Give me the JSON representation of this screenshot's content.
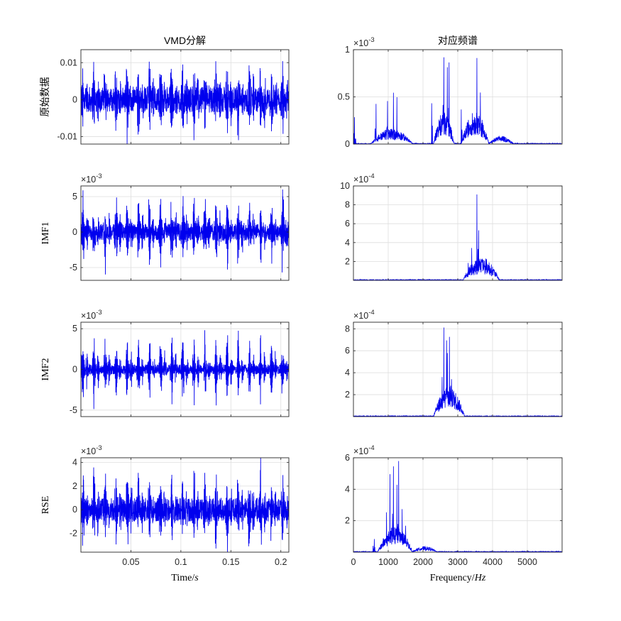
{
  "colors": {
    "signal": "#0000ee",
    "axis": "#262626",
    "grid": "#dedede"
  },
  "chart_data": [
    {
      "id": "raw-time",
      "type": "line",
      "title": "VMD分解",
      "ylabel": "原始数据",
      "xlabel": "",
      "xlim": [
        0,
        0.208
      ],
      "ylim": [
        -0.012,
        0.0135
      ],
      "xticks": [
        0.05,
        0.1,
        0.15,
        0.2
      ],
      "xtick_labels": [
        "",
        "",
        "",
        ""
      ],
      "yticks": [
        -0.01,
        0,
        0.01
      ],
      "ytick_labels": [
        "-0.01",
        "0",
        "0.01"
      ],
      "exponent": "",
      "grid": true,
      "series": [
        {
          "amplitude": 0.012,
          "base_noise": 0.0035
        }
      ]
    },
    {
      "id": "raw-spectrum",
      "type": "line",
      "title": "对应频谱",
      "ylabel": "",
      "xlabel": "",
      "xlim": [
        0,
        6000
      ],
      "ylim": [
        0,
        1
      ],
      "xticks": [
        0,
        1000,
        2000,
        3000,
        4000,
        5000
      ],
      "xtick_labels": [
        "",
        "",
        "",
        "",
        "",
        ""
      ],
      "yticks": [
        0,
        0.5,
        1
      ],
      "ytick_labels": [
        "0",
        "0.5",
        "1"
      ],
      "exponent": "-3",
      "grid": true,
      "series": [
        {
          "peaks": [
            [
              30,
              0.3
            ],
            [
              650,
              0.45
            ],
            [
              980,
              0.5
            ],
            [
              1150,
              0.6
            ],
            [
              1250,
              0.5
            ],
            [
              2250,
              0.45
            ],
            [
              2600,
              0.95
            ],
            [
              2700,
              0.85
            ],
            [
              2750,
              0.92
            ],
            [
              3100,
              0.4
            ],
            [
              3550,
              1.0
            ],
            [
              3650,
              0.55
            ]
          ],
          "bands": [
            [
              500,
              1700,
              0.12
            ],
            [
              2300,
              2900,
              0.25
            ],
            [
              3100,
              3900,
              0.25
            ],
            [
              3900,
              4600,
              0.06
            ]
          ]
        }
      ]
    },
    {
      "id": "imf1-time",
      "type": "line",
      "title": "",
      "ylabel": "IMF1",
      "xlabel": "",
      "xlim": [
        0,
        0.208
      ],
      "ylim": [
        -6.8,
        6.5
      ],
      "xticks": [
        0.05,
        0.1,
        0.15,
        0.2
      ],
      "xtick_labels": [
        "",
        "",
        "",
        ""
      ],
      "yticks": [
        -5,
        0,
        5
      ],
      "ytick_labels": [
        "-5",
        "0",
        "5"
      ],
      "exponent": "-3",
      "grid": true,
      "series": [
        {
          "amplitude": 6.3,
          "base_noise": 1.2
        }
      ]
    },
    {
      "id": "imf1-spectrum",
      "type": "line",
      "title": "",
      "ylabel": "",
      "xlabel": "",
      "xlim": [
        0,
        6000
      ],
      "ylim": [
        0,
        10
      ],
      "xticks": [
        0,
        1000,
        2000,
        3000,
        4000,
        5000
      ],
      "xtick_labels": [
        "",
        "",
        "",
        "",
        "",
        ""
      ],
      "yticks": [
        2,
        4,
        6,
        8,
        10
      ],
      "ytick_labels": [
        "2",
        "4",
        "6",
        "8",
        "10"
      ],
      "exponent": "-4",
      "grid": true,
      "series": [
        {
          "peaks": [
            [
              3550,
              10.0
            ],
            [
              3600,
              5.8
            ],
            [
              3400,
              3.5
            ],
            [
              3700,
              2.5
            ],
            [
              3300,
              2.0
            ]
          ],
          "bands": [
            [
              3150,
              4200,
              1.8
            ]
          ]
        }
      ]
    },
    {
      "id": "imf2-time",
      "type": "line",
      "title": "",
      "ylabel": "IMF2",
      "xlabel": "",
      "xlim": [
        0,
        0.208
      ],
      "ylim": [
        -5.8,
        5.8
      ],
      "xticks": [
        0.05,
        0.1,
        0.15,
        0.2
      ],
      "xtick_labels": [
        "",
        "",
        "",
        ""
      ],
      "yticks": [
        -5,
        0,
        5
      ],
      "ytick_labels": [
        "-5",
        "0",
        "5"
      ],
      "exponent": "-3",
      "grid": true,
      "series": [
        {
          "amplitude": 5.6,
          "base_noise": 0.6
        }
      ]
    },
    {
      "id": "imf2-spectrum",
      "type": "line",
      "title": "",
      "ylabel": "",
      "xlabel": "",
      "xlim": [
        0,
        6000
      ],
      "ylim": [
        0,
        8.6
      ],
      "xticks": [
        0,
        1000,
        2000,
        3000,
        4000,
        5000
      ],
      "xtick_labels": [
        "",
        "",
        "",
        "",
        "",
        ""
      ],
      "yticks": [
        2,
        4,
        6,
        8
      ],
      "ytick_labels": [
        "2",
        "4",
        "6",
        "8"
      ],
      "exponent": "-4",
      "grid": true,
      "series": [
        {
          "peaks": [
            [
              2600,
              8.6
            ],
            [
              2680,
              7.3
            ],
            [
              2760,
              7.6
            ],
            [
              2700,
              6.0
            ],
            [
              2550,
              4.0
            ],
            [
              2820,
              3.5
            ]
          ],
          "bands": [
            [
              2300,
              3200,
              2.0
            ]
          ]
        }
      ]
    },
    {
      "id": "rse-time",
      "type": "line",
      "title": "",
      "ylabel": "RSE",
      "xlabel": "Time/",
      "xlabel_italic": "s",
      "xlim": [
        0,
        0.208
      ],
      "ylim": [
        -3.6,
        4.4
      ],
      "xticks": [
        0.05,
        0.1,
        0.15,
        0.2
      ],
      "xtick_labels": [
        "0.05",
        "0.1",
        "0.15",
        "0.2"
      ],
      "yticks": [
        -2,
        0,
        2,
        4
      ],
      "ytick_labels": [
        "-2",
        "0",
        "2",
        "4"
      ],
      "exponent": "-3",
      "grid": true,
      "series": [
        {
          "amplitude": 3.9,
          "base_noise": 1.0
        }
      ]
    },
    {
      "id": "rse-spectrum",
      "type": "line",
      "title": "",
      "ylabel": "",
      "xlabel": "Frequency/",
      "xlabel_italic": "Hz",
      "xlim": [
        0,
        6000
      ],
      "ylim": [
        0,
        6
      ],
      "xticks": [
        0,
        1000,
        2000,
        3000,
        4000,
        5000
      ],
      "xtick_labels": [
        "0",
        "1000",
        "2000",
        "3000",
        "4000",
        "5000"
      ],
      "yticks": [
        2,
        4,
        6
      ],
      "ytick_labels": [
        "2",
        "4",
        "6"
      ],
      "exponent": "-4",
      "grid": true,
      "series": [
        {
          "peaks": [
            [
              1050,
              5.0
            ],
            [
              1150,
              5.5
            ],
            [
              1300,
              6.0
            ],
            [
              1250,
              4.5
            ],
            [
              1400,
              3.0
            ],
            [
              950,
              2.8
            ],
            [
              1500,
              1.8
            ],
            [
              600,
              0.9
            ]
          ],
          "bands": [
            [
              700,
              1700,
              1.2
            ],
            [
              1700,
              2400,
              0.25
            ]
          ]
        }
      ]
    }
  ]
}
